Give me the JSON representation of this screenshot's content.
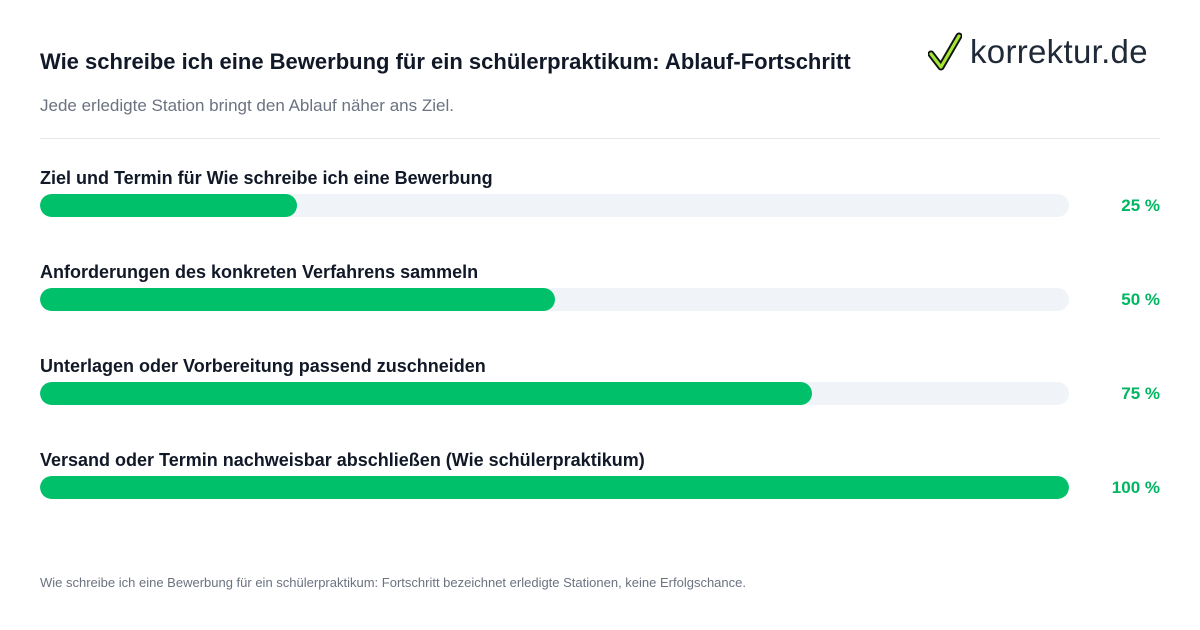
{
  "header": {
    "title": "Wie schreibe ich eine Bewerbung für ein schülerpraktikum: Ablauf-Fortschritt",
    "subtitle": "Jede erledigte Station bringt den Ablauf näher ans Ziel."
  },
  "logo": {
    "text": "korrektur.de",
    "icon": "checkmark-icon"
  },
  "colors": {
    "accent": "#00c16a",
    "track": "#f0f3f8",
    "percent_text": "#00b761"
  },
  "chart_data": {
    "type": "bar",
    "orientation": "horizontal",
    "title": "Wie schreibe ich eine Bewerbung für ein schülerpraktikum: Ablauf-Fortschritt",
    "subtitle": "Jede erledigte Station bringt den Ablauf näher ans Ziel.",
    "categories": [
      "Ziel und Termin für Wie schreibe ich eine Bewerbung",
      "Anforderungen des konkreten Verfahrens sammeln",
      "Unterlagen oder Vorbereitung passend zuschneiden",
      "Versand oder Termin nachweisbar abschließen (Wie schülerpraktikum)"
    ],
    "values": [
      25,
      50,
      75,
      100
    ],
    "value_labels": [
      "25 %",
      "50 %",
      "75 %",
      "100 %"
    ],
    "xlim": [
      0,
      100
    ]
  },
  "footnote": "Wie schreibe ich eine Bewerbung für ein schülerpraktikum: Fortschritt bezeichnet erledigte Stationen, keine Erfolgschance."
}
